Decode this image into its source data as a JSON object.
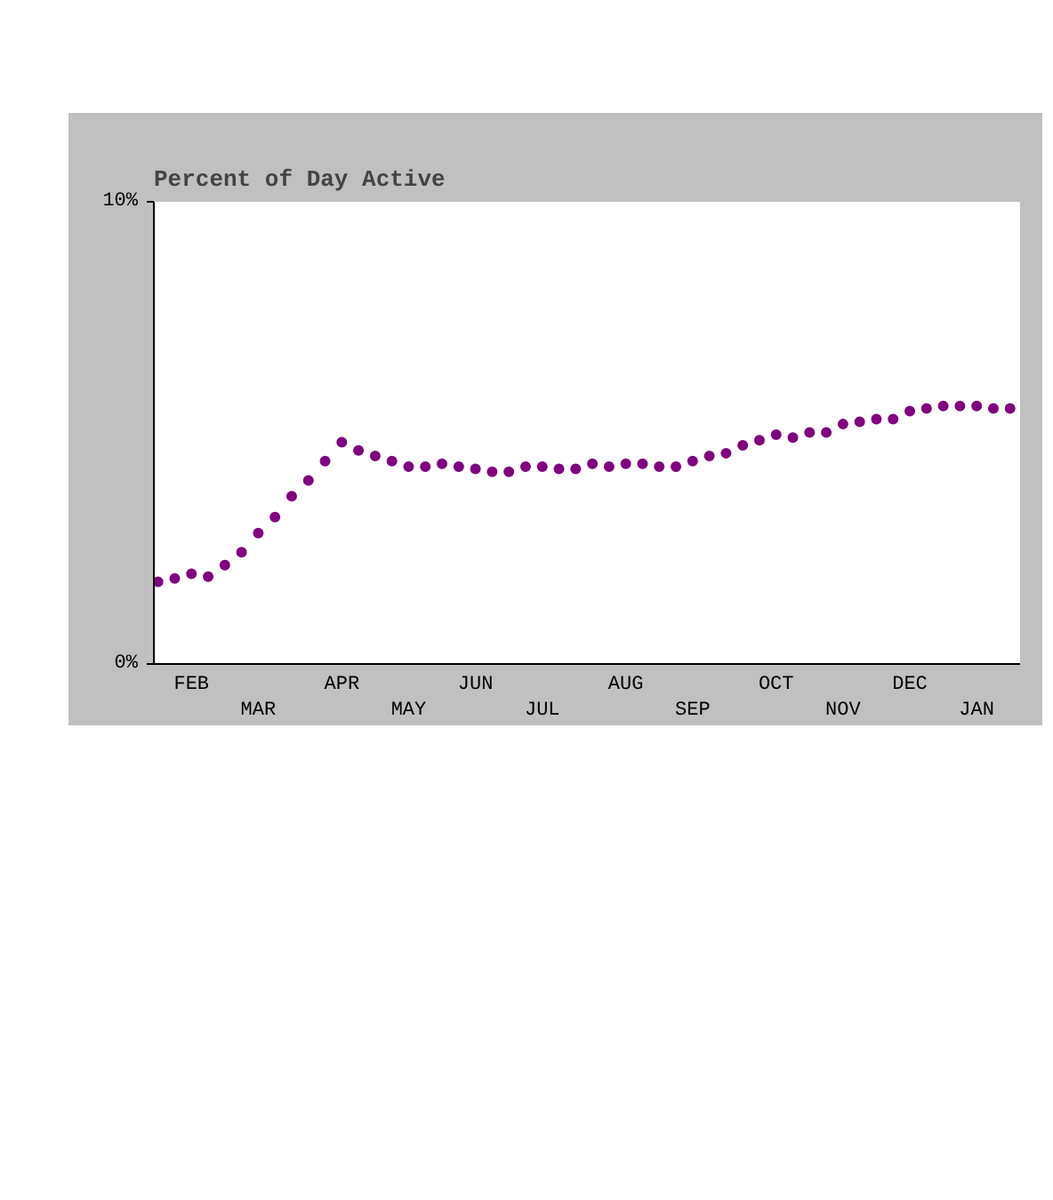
{
  "chart_data": {
    "type": "scatter",
    "title": "Percent of Day Active",
    "marker": "circle",
    "grid": false,
    "categories": [
      null,
      null,
      "FEB",
      null,
      null,
      null,
      "MAR",
      null,
      null,
      null,
      null,
      "APR",
      null,
      null,
      null,
      "MAY",
      null,
      null,
      null,
      "JUN",
      null,
      null,
      null,
      "JUL",
      null,
      null,
      null,
      null,
      "AUG",
      null,
      null,
      null,
      "SEP",
      null,
      null,
      null,
      null,
      "OCT",
      null,
      null,
      null,
      "NOV",
      null,
      null,
      null,
      "DEC",
      null,
      null,
      null,
      "JAN",
      null,
      null
    ],
    "series": [
      {
        "color": "#800080",
        "values": [
          1.78,
          1.85,
          1.95,
          1.89,
          2.14,
          2.42,
          2.83,
          3.18,
          3.63,
          3.97,
          4.39,
          4.8,
          4.62,
          4.5,
          4.39,
          4.27,
          4.27,
          4.33,
          4.27,
          4.22,
          4.16,
          4.16,
          4.27,
          4.27,
          4.22,
          4.22,
          4.33,
          4.27,
          4.33,
          4.33,
          4.27,
          4.27,
          4.39,
          4.5,
          4.56,
          4.73,
          4.84,
          4.96,
          4.9,
          5.01,
          5.01,
          5.19,
          5.24,
          5.3,
          5.3,
          5.47,
          5.53,
          5.58,
          5.58,
          5.58,
          5.53,
          5.53
        ]
      }
    ],
    "ylim": [
      0,
      10
    ],
    "yticks": [
      {
        "value": 0,
        "label": "0%"
      },
      {
        "value": 10,
        "label": "10%"
      }
    ]
  }
}
